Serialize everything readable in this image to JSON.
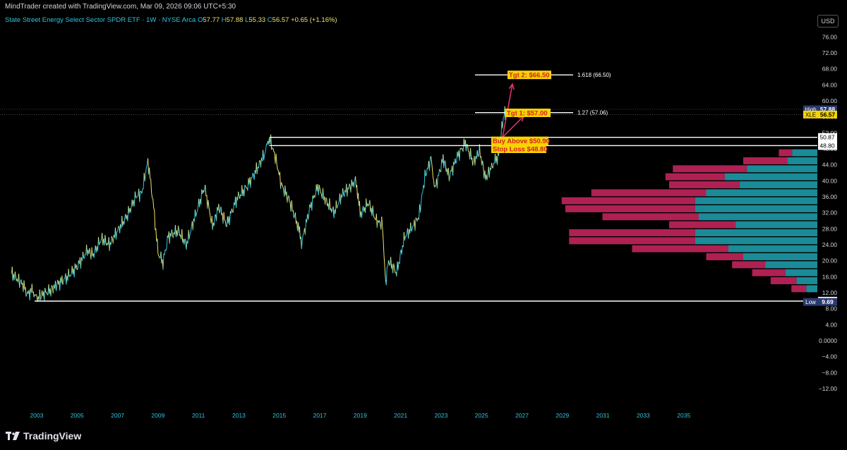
{
  "header": {
    "credit": "MindTrader created with TradingView.com, Mar 09, 2026 09:06 UTC+5:30",
    "symbol_title": "State Street Energy Select Sector SPDR ETF · 1W · NYSE Arca",
    "open_label": "O",
    "open": "57.77",
    "high_label": "H",
    "high": "57.88",
    "low_label": "L",
    "low": "55.33",
    "close_label": "C",
    "close": "56.57",
    "change": "+0.65 (+1.16%)",
    "currency_button": "USD"
  },
  "brand": {
    "name": "TradingView"
  },
  "colors": {
    "background": "#000000",
    "axis_text": "#d1d4dc",
    "time_axis_text": "#2ec4e0",
    "price_up": "#2ec4e0",
    "price_down": "#f0e26a",
    "vp_up": "#1e9aa8",
    "vp_down": "#c2255c",
    "annotation_fill": "#f5d400",
    "annotation_text": "#d62020",
    "arrow": "#e0306a",
    "level_line": "#ffffff"
  },
  "chart_data": {
    "type": "line",
    "ticker": "XLE",
    "y_ticks": [
      "76.00",
      "72.00",
      "68.00",
      "64.00",
      "60.00",
      "56.00",
      "52.00",
      "48.00",
      "44.00",
      "40.00",
      "36.00",
      "32.00",
      "28.00",
      "24.00",
      "20.00",
      "16.00",
      "12.00",
      "8.00",
      "4.00",
      "0.0000",
      "−4.00",
      "−8.00",
      "−12.00"
    ],
    "y_tick_values": [
      76,
      72,
      68,
      64,
      60,
      56,
      52,
      48,
      44,
      40,
      36,
      32,
      28,
      24,
      20,
      16,
      12,
      8,
      4,
      0,
      -4,
      -8,
      -12
    ],
    "x_ticks": [
      "2003",
      "2005",
      "2007",
      "2009",
      "2011",
      "2013",
      "2015",
      "2017",
      "2019",
      "2021",
      "2023",
      "2025",
      "2027",
      "2029",
      "2031",
      "2033",
      "2035"
    ],
    "x_tick_values": [
      2003,
      2005,
      2007,
      2009,
      2011,
      2013,
      2015,
      2017,
      2019,
      2021,
      2023,
      2025,
      2027,
      2029,
      2031,
      2033,
      2035
    ],
    "ylim": [
      -14,
      82
    ],
    "xlim": [
      2001.7,
      2039.0
    ],
    "price_series": [
      [
        2001.75,
        17.0
      ],
      [
        2002.0,
        15.5
      ],
      [
        2002.3,
        14.2
      ],
      [
        2002.55,
        11.5
      ],
      [
        2002.8,
        12.8
      ],
      [
        2003.0,
        10.5
      ],
      [
        2003.3,
        11.6
      ],
      [
        2003.7,
        12.6
      ],
      [
        2004.0,
        14.0
      ],
      [
        2004.5,
        15.8
      ],
      [
        2005.0,
        18.5
      ],
      [
        2005.5,
        22.5
      ],
      [
        2005.8,
        21.5
      ],
      [
        2006.2,
        25.5
      ],
      [
        2006.6,
        24.0
      ],
      [
        2007.0,
        27.5
      ],
      [
        2007.5,
        31.5
      ],
      [
        2007.9,
        36.0
      ],
      [
        2008.2,
        37.0
      ],
      [
        2008.5,
        45.0
      ],
      [
        2008.75,
        35.0
      ],
      [
        2009.0,
        22.0
      ],
      [
        2009.25,
        19.5
      ],
      [
        2009.5,
        26.0
      ],
      [
        2010.0,
        27.5
      ],
      [
        2010.4,
        24.0
      ],
      [
        2010.8,
        30.5
      ],
      [
        2011.3,
        38.5
      ],
      [
        2011.7,
        28.5
      ],
      [
        2012.0,
        33.5
      ],
      [
        2012.4,
        29.0
      ],
      [
        2012.9,
        35.5
      ],
      [
        2013.4,
        38.5
      ],
      [
        2013.9,
        43.0
      ],
      [
        2014.3,
        47.0
      ],
      [
        2014.5,
        50.8
      ],
      [
        2014.8,
        46.0
      ],
      [
        2015.1,
        39.0
      ],
      [
        2015.5,
        35.0
      ],
      [
        2015.9,
        29.0
      ],
      [
        2016.1,
        24.5
      ],
      [
        2016.5,
        33.0
      ],
      [
        2016.9,
        38.5
      ],
      [
        2017.3,
        35.0
      ],
      [
        2017.7,
        32.0
      ],
      [
        2018.1,
        36.5
      ],
      [
        2018.5,
        38.5
      ],
      [
        2018.8,
        40.0
      ],
      [
        2019.0,
        31.5
      ],
      [
        2019.4,
        34.5
      ],
      [
        2019.8,
        30.0
      ],
      [
        2020.1,
        29.0
      ],
      [
        2020.25,
        14.5
      ],
      [
        2020.4,
        20.0
      ],
      [
        2020.8,
        17.0
      ],
      [
        2021.2,
        26.0
      ],
      [
        2021.6,
        28.5
      ],
      [
        2021.9,
        31.0
      ],
      [
        2022.2,
        41.0
      ],
      [
        2022.5,
        45.5
      ],
      [
        2022.7,
        38.0
      ],
      [
        2023.1,
        45.5
      ],
      [
        2023.4,
        41.0
      ],
      [
        2023.8,
        46.0
      ],
      [
        2024.2,
        49.5
      ],
      [
        2024.6,
        44.5
      ],
      [
        2024.9,
        47.5
      ],
      [
        2025.2,
        40.5
      ],
      [
        2025.5,
        43.5
      ],
      [
        2025.85,
        46.5
      ],
      [
        2026.0,
        53.0
      ],
      [
        2026.15,
        57.88
      ],
      [
        2026.18,
        56.57
      ]
    ],
    "horizontal_levels": [
      {
        "label": "50.87",
        "value": 50.87,
        "x_start": 2014.5
      },
      {
        "label": "48.80",
        "value": 48.8,
        "x_start": 2014.5
      },
      {
        "label": "9.90",
        "value": 9.9,
        "x_start": 2002.9
      }
    ],
    "fib_levels": [
      {
        "label": "1.618 (66.50)",
        "value": 66.5
      },
      {
        "label": "1.27 (57.06)",
        "value": 57.06
      }
    ],
    "annotations": [
      {
        "text": "Tgt 2: $66.50",
        "value": 66.5
      },
      {
        "text": "Tgt 1: $57.00",
        "value": 57.0
      },
      {
        "text": "Buy Above $50.90",
        "value": 50.0
      },
      {
        "text": "Stop Loss $48.80",
        "value": 48.0
      }
    ],
    "price_tags": [
      {
        "label": "High",
        "value": "57.88",
        "price": 57.88
      },
      {
        "label": "XLE",
        "value": "56.57",
        "price": 56.57
      },
      {
        "label": "Low",
        "value": "9.69",
        "price": 9.69
      }
    ],
    "volume_profile": [
      {
        "price": 47.0,
        "up": 34,
        "down": 18
      },
      {
        "price": 45.0,
        "up": 40,
        "down": 60
      },
      {
        "price": 43.0,
        "up": 95,
        "down": 100
      },
      {
        "price": 41.0,
        "up": 125,
        "down": 80
      },
      {
        "price": 39.0,
        "up": 105,
        "down": 95
      },
      {
        "price": 37.0,
        "up": 150,
        "down": 155
      },
      {
        "price": 35.0,
        "up": 165,
        "down": 180
      },
      {
        "price": 33.0,
        "up": 165,
        "down": 175
      },
      {
        "price": 31.0,
        "up": 160,
        "down": 130
      },
      {
        "price": 29.0,
        "up": 110,
        "down": 90
      },
      {
        "price": 27.0,
        "up": 165,
        "down": 170
      },
      {
        "price": 25.0,
        "up": 165,
        "down": 170
      },
      {
        "price": 23.0,
        "up": 120,
        "down": 130
      },
      {
        "price": 21.0,
        "up": 100,
        "down": 50
      },
      {
        "price": 19.0,
        "up": 70,
        "down": 45
      },
      {
        "price": 17.0,
        "up": 43,
        "down": 45
      },
      {
        "price": 15.0,
        "up": 28,
        "down": 35
      },
      {
        "price": 13.0,
        "up": 15,
        "down": 20
      }
    ]
  }
}
